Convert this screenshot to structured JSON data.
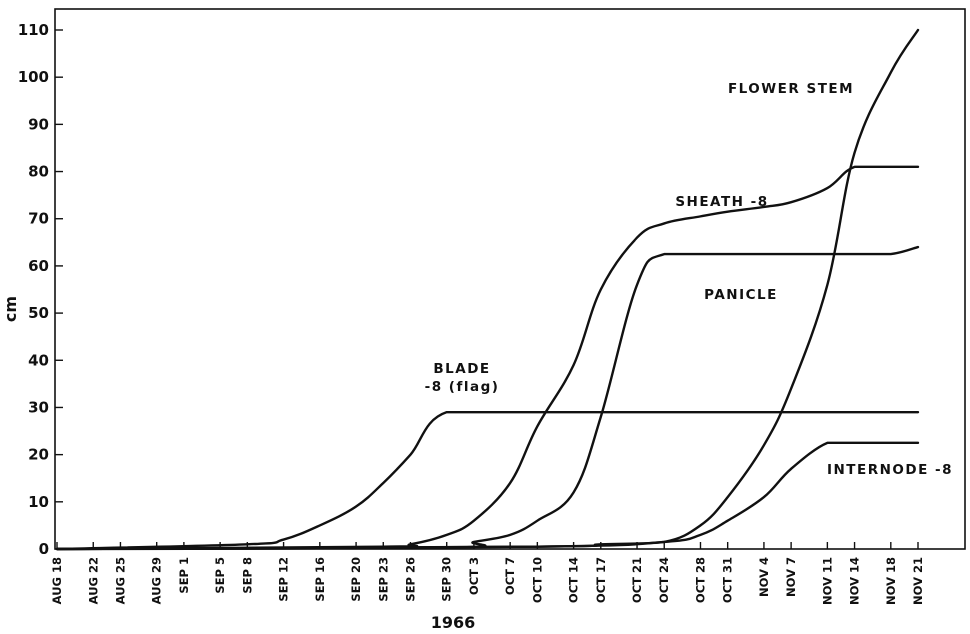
{
  "chart_data": {
    "type": "line",
    "xlabel": "1966",
    "ylabel": "cm",
    "ylim": [
      0,
      110
    ],
    "yticks": [
      0,
      10,
      20,
      30,
      40,
      50,
      60,
      70,
      80,
      90,
      100,
      110
    ],
    "ytick_labels": [
      "0",
      "10",
      "20",
      "30",
      "40",
      "50",
      "60",
      "70",
      "80",
      "90",
      "100",
      "110"
    ],
    "xlim": [
      "1966-08-18",
      "1966-11-21"
    ],
    "x_tick_dates": [
      "1966-08-18",
      "1966-08-22",
      "1966-08-25",
      "1966-08-29",
      "1966-09-01",
      "1966-09-05",
      "1966-09-08",
      "1966-09-12",
      "1966-09-16",
      "1966-09-20",
      "1966-09-23",
      "1966-09-26",
      "1966-09-30",
      "1966-10-03",
      "1966-10-07",
      "1966-10-10",
      "1966-10-14",
      "1966-10-17",
      "1966-10-21",
      "1966-10-24",
      "1966-10-28",
      "1966-10-31",
      "1966-11-04",
      "1966-11-07",
      "1966-11-11",
      "1966-11-14",
      "1966-11-18",
      "1966-11-21"
    ],
    "x_tick_labels": [
      "AUG 18",
      "AUG 22",
      "AUG 25",
      "AUG 29",
      "SEP 1",
      "SEP 5",
      "SEP 8",
      "SEP 12",
      "SEP 16",
      "SEP 20",
      "SEP 23",
      "SEP 26",
      "SEP 30",
      "OCT 3",
      "OCT 7",
      "OCT 10",
      "OCT 14",
      "OCT 17",
      "OCT 21",
      "OCT 24",
      "OCT 28",
      "OCT 31",
      "NOV 4",
      "NOV 7",
      "NOV 11",
      "NOV 14",
      "NOV 18",
      "NOV 21"
    ],
    "grid": false,
    "legend": "none",
    "series": [
      {
        "name": "BLADE -8 (flag)",
        "label_lines": [
          "BLADE",
          "-8 (flag)"
        ],
        "x": [
          "1966-08-18",
          "1966-09-08",
          "1966-09-12",
          "1966-09-16",
          "1966-09-20",
          "1966-09-23",
          "1966-09-26",
          "1966-09-30",
          "1966-10-10",
          "1966-10-24",
          "1966-11-07",
          "1966-11-21"
        ],
        "y": [
          0,
          1,
          2,
          5,
          9,
          14,
          20,
          29,
          29,
          29,
          29,
          29
        ]
      },
      {
        "name": "SHEATH -8",
        "x": [
          "1966-08-18",
          "1966-09-23",
          "1966-09-26",
          "1966-09-30",
          "1966-10-03",
          "1966-10-07",
          "1966-10-10",
          "1966-10-14",
          "1966-10-17",
          "1966-10-21",
          "1966-10-24",
          "1966-10-28",
          "1966-10-31",
          "1966-11-04",
          "1966-11-07",
          "1966-11-11",
          "1966-11-14",
          "1966-11-18",
          "1966-11-21"
        ],
        "y": [
          0,
          0.5,
          1,
          3,
          6,
          14,
          26,
          39,
          55,
          66,
          69,
          70.5,
          71.5,
          72.5,
          73.5,
          76.5,
          81,
          81,
          81
        ]
      },
      {
        "name": "PANICLE",
        "x": [
          "1966-08-18",
          "1966-09-30",
          "1966-10-03",
          "1966-10-07",
          "1966-10-10",
          "1966-10-14",
          "1966-10-17",
          "1966-10-21",
          "1966-10-24",
          "1966-10-31",
          "1966-11-07",
          "1966-11-14",
          "1966-11-18",
          "1966-11-21"
        ],
        "y": [
          0,
          0.3,
          1.5,
          3,
          6,
          12,
          28,
          56,
          62.5,
          62.5,
          62.5,
          62.5,
          62.5,
          64
        ]
      },
      {
        "name": "FLOWER STEM",
        "x": [
          "1966-08-18",
          "1966-10-10",
          "1966-10-17",
          "1966-10-24",
          "1966-10-28",
          "1966-10-31",
          "1966-11-04",
          "1966-11-07",
          "1966-11-11",
          "1966-11-14",
          "1966-11-18",
          "1966-11-21"
        ],
        "y": [
          0,
          0.5,
          1,
          1.5,
          5,
          11,
          22,
          34,
          56,
          84,
          101,
          110
        ]
      },
      {
        "name": "INTERNODE -8",
        "x": [
          "1966-08-18",
          "1966-10-10",
          "1966-10-24",
          "1966-10-28",
          "1966-10-31",
          "1966-11-04",
          "1966-11-07",
          "1966-11-11",
          "1966-11-14",
          "1966-11-18",
          "1966-11-21"
        ],
        "y": [
          0,
          0.5,
          1.5,
          3,
          6,
          11,
          17,
          22.5,
          22.5,
          22.5,
          22.5
        ]
      }
    ]
  }
}
